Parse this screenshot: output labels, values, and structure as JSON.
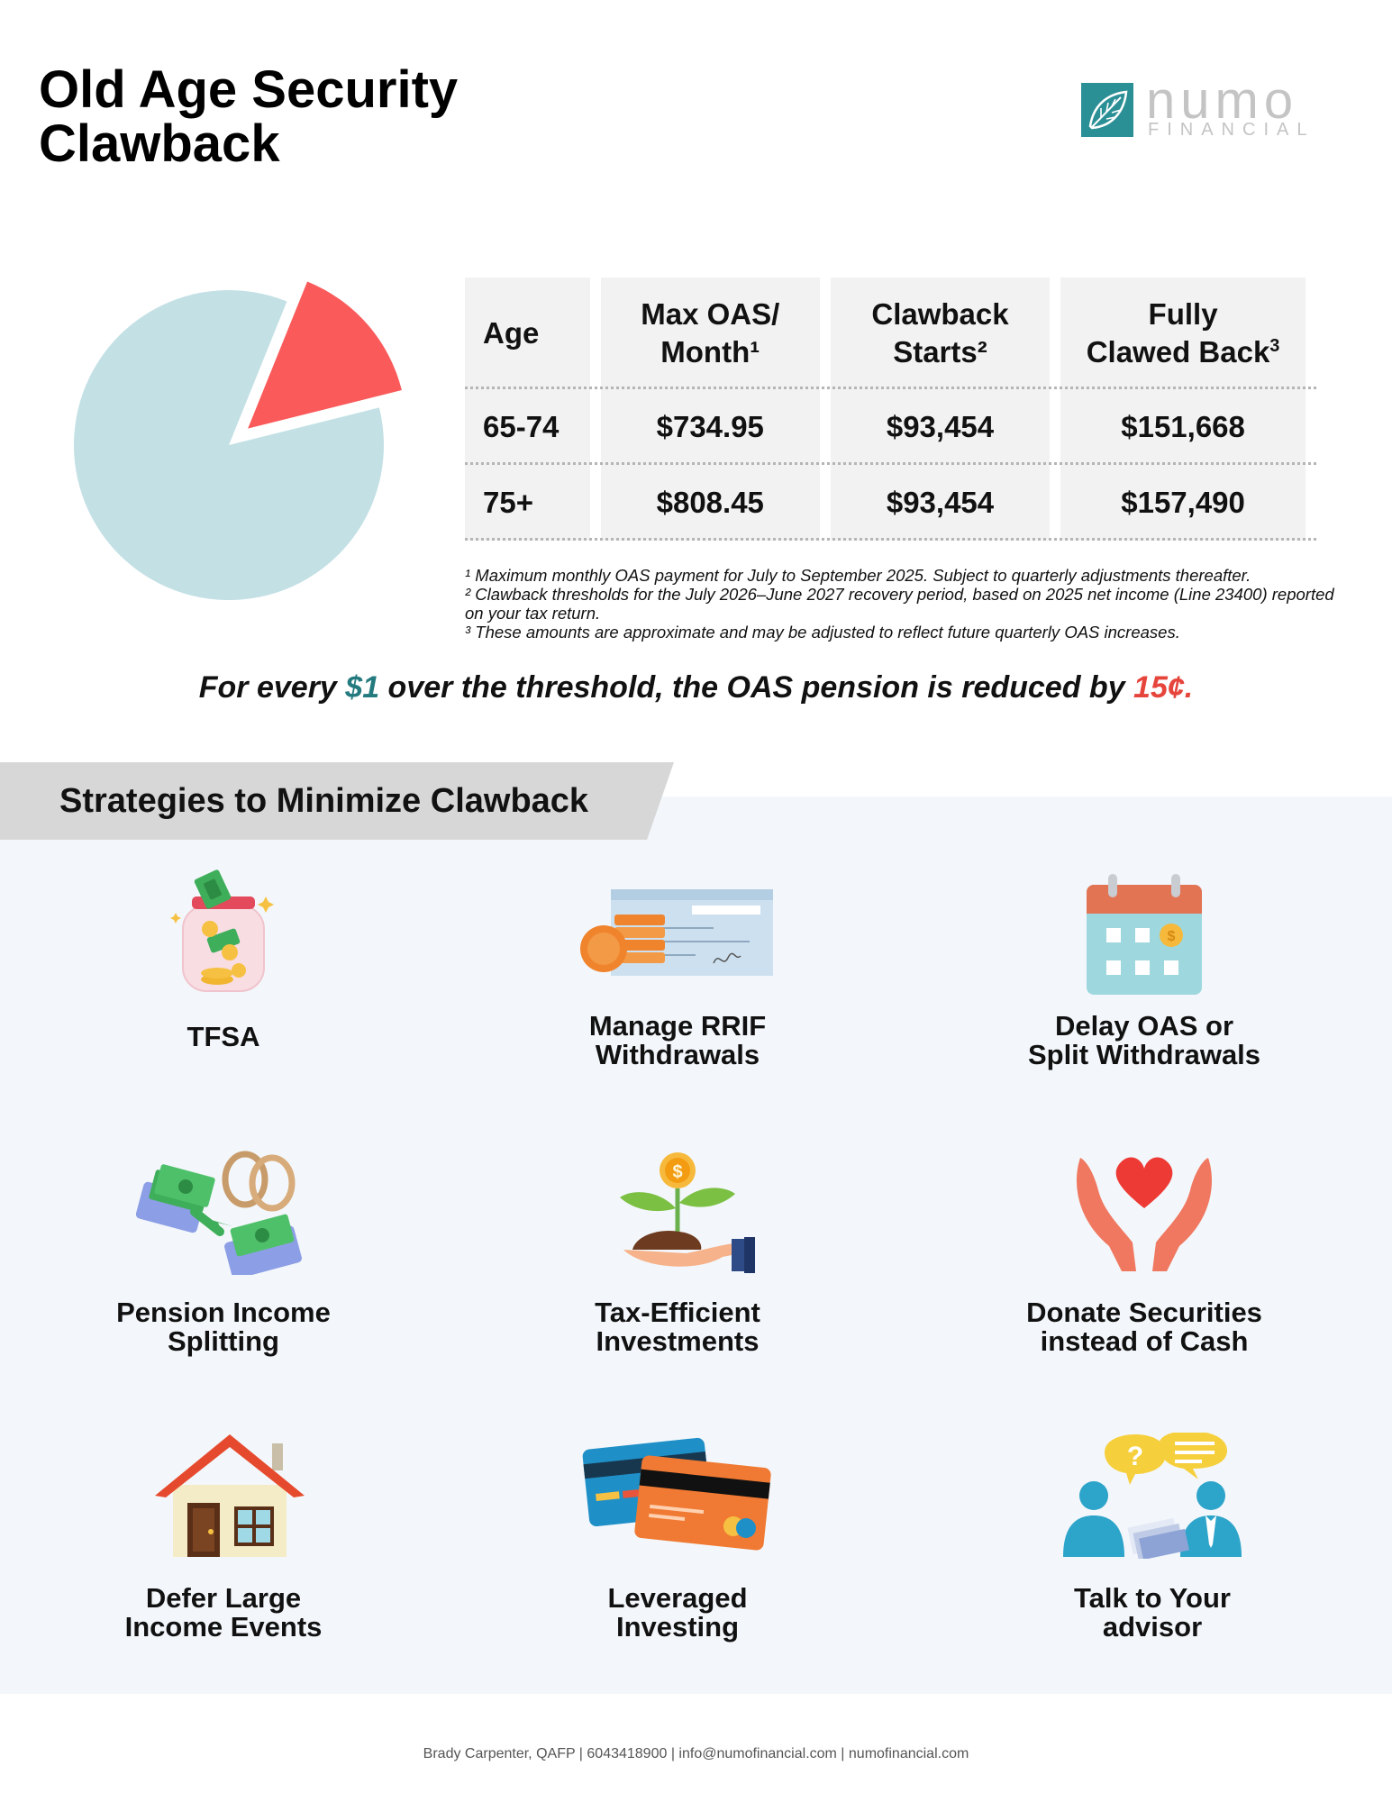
{
  "title": {
    "line1": "Old Age Security",
    "line2": "Clawback"
  },
  "logo": {
    "word": "numo",
    "sub": "FINANCIAL"
  },
  "table": {
    "headers": [
      {
        "line1": "Age",
        "line2": "",
        "sup": ""
      },
      {
        "line1": "Max OAS/",
        "line2": "Month",
        "sup": "¹"
      },
      {
        "line1": "Clawback",
        "line2": "Starts",
        "sup": "²"
      },
      {
        "line1": "Fully",
        "line2": "Clawed Back",
        "sup": "3"
      }
    ],
    "rows": [
      [
        "65-74",
        "$734.95",
        "$93,454",
        "$151,668"
      ],
      [
        "75+",
        "$808.45",
        "$93,454",
        "$157,490"
      ]
    ]
  },
  "notes": [
    "¹ Maximum monthly OAS payment for July to September 2025. Subject to quarterly adjustments thereafter.",
    "² Clawback thresholds for the July 2026–June 2027 recovery period, based on 2025 net income (Line 23400) reported on your tax return.",
    "³ These amounts are approximate and may be adjusted to reflect future quarterly OAS increases."
  ],
  "tagline": {
    "part1": "For every ",
    "amount": "$1",
    "part2": " over the threshold, the OAS pension is reduced by ",
    "reduction": "15¢."
  },
  "strategies_title": "Strategies to Minimize Clawback",
  "strategies": [
    {
      "line1": "TFSA",
      "line2": "",
      "icon": "money-jar-icon"
    },
    {
      "line1": "Manage RRIF",
      "line2": "Withdrawals",
      "icon": "cheque-coins-icon"
    },
    {
      "line1": "Delay OAS or",
      "line2": "Split Withdrawals",
      "icon": "calendar-icon"
    },
    {
      "line1": "Pension Income",
      "line2": "Splitting",
      "icon": "rings-money-transfer-icon"
    },
    {
      "line1": "Tax-Efficient",
      "line2": "Investments",
      "icon": "money-plant-icon"
    },
    {
      "line1": "Donate Securities",
      "line2": "instead of Cash",
      "icon": "heart-hands-icon"
    },
    {
      "line1": "Defer Large",
      "line2": "Income Events",
      "icon": "house-icon"
    },
    {
      "line1": "Leveraged",
      "line2": "Investing",
      "icon": "credit-cards-icon"
    },
    {
      "line1": "Talk to Your",
      "line2": "advisor",
      "icon": "advisor-chat-icon"
    }
  ],
  "pie": {
    "clawback_fraction": 0.15,
    "colors": {
      "main": "#c3e0e5",
      "slice": "#fa5a5a"
    }
  },
  "footer": "Brady Carpenter, QAFP | 6043418900 | info@numofinancial.com | numofinancial.com"
}
